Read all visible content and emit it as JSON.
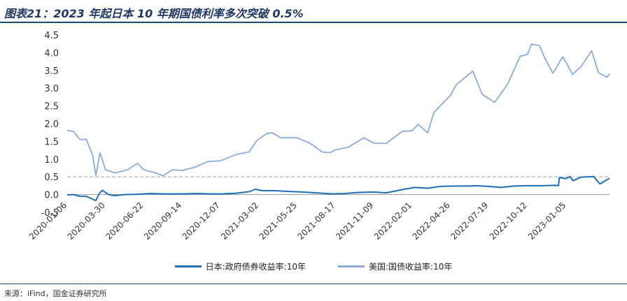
{
  "page": {
    "title": "图表21：2023 年起日本 10 年期国债利率多次突破 0.5%",
    "source": "来源：iFind，国金证券研究所"
  },
  "chart_data": {
    "type": "line",
    "title": "图表21：2023 年起日本 10 年期国债利率多次突破 0.5%",
    "xlabel": "",
    "ylabel": "",
    "ylim": [
      -0.5,
      4.5
    ],
    "yticks": [
      "-0.5",
      "0.0",
      "0.5",
      "1.0",
      "1.5",
      "2.0",
      "2.5",
      "3.0",
      "3.5",
      "4.0",
      "4.5"
    ],
    "xticks": [
      "2020-01-06",
      "2020-03-30",
      "2020-06-22",
      "2020-09-14",
      "2020-12-07",
      "2021-03-02",
      "2021-05-25",
      "2021-08-17",
      "2021-11-09",
      "2022-02-01",
      "2022-04-26",
      "2022-07-19",
      "2022-10-12",
      "2023-01-05"
    ],
    "xrange": [
      "2020-01-06",
      "2023-04-10"
    ],
    "reference_line": {
      "y": 0.5,
      "style": "dashed",
      "color": "#a6a6a6"
    },
    "grid": false,
    "legend_position": "bottom",
    "series": [
      {
        "name": "日本:政府债券收益率:10年",
        "color": "#1f6fb5",
        "points": [
          [
            "2020-01-06",
            -0.01
          ],
          [
            "2020-01-20",
            0.0
          ],
          [
            "2020-02-03",
            -0.05
          ],
          [
            "2020-02-17",
            -0.05
          ],
          [
            "2020-03-02",
            -0.13
          ],
          [
            "2020-03-09",
            -0.17
          ],
          [
            "2020-03-16",
            0.02
          ],
          [
            "2020-03-23",
            0.12
          ],
          [
            "2020-04-06",
            0.0
          ],
          [
            "2020-04-20",
            -0.03
          ],
          [
            "2020-05-11",
            0.0
          ],
          [
            "2020-06-08",
            0.01
          ],
          [
            "2020-07-06",
            0.03
          ],
          [
            "2020-08-03",
            0.02
          ],
          [
            "2020-09-14",
            0.02
          ],
          [
            "2020-10-19",
            0.03
          ],
          [
            "2020-11-16",
            0.02
          ],
          [
            "2020-12-14",
            0.02
          ],
          [
            "2021-01-11",
            0.04
          ],
          [
            "2021-02-08",
            0.08
          ],
          [
            "2021-02-22",
            0.15
          ],
          [
            "2021-03-08",
            0.11
          ],
          [
            "2021-04-05",
            0.11
          ],
          [
            "2021-05-03",
            0.09
          ],
          [
            "2021-06-07",
            0.07
          ],
          [
            "2021-07-05",
            0.05
          ],
          [
            "2021-08-09",
            0.02
          ],
          [
            "2021-09-06",
            0.03
          ],
          [
            "2021-10-04",
            0.06
          ],
          [
            "2021-11-08",
            0.07
          ],
          [
            "2021-12-06",
            0.05
          ],
          [
            "2022-01-10",
            0.14
          ],
          [
            "2022-02-07",
            0.2
          ],
          [
            "2022-03-07",
            0.18
          ],
          [
            "2022-04-04",
            0.23
          ],
          [
            "2022-05-09",
            0.24
          ],
          [
            "2022-06-06",
            0.24
          ],
          [
            "2022-06-20",
            0.25
          ],
          [
            "2022-07-18",
            0.23
          ],
          [
            "2022-08-15",
            0.2
          ],
          [
            "2022-09-12",
            0.24
          ],
          [
            "2022-10-10",
            0.25
          ],
          [
            "2022-11-14",
            0.25
          ],
          [
            "2022-12-12",
            0.26
          ],
          [
            "2022-12-19",
            0.25
          ],
          [
            "2022-12-21",
            0.48
          ],
          [
            "2023-01-05",
            0.45
          ],
          [
            "2023-01-13",
            0.51
          ],
          [
            "2023-01-20",
            0.39
          ],
          [
            "2023-02-06",
            0.49
          ],
          [
            "2023-03-06",
            0.51
          ],
          [
            "2023-03-20",
            0.3
          ],
          [
            "2023-04-10",
            0.46
          ]
        ]
      },
      {
        "name": "美国:国债收益率:10年",
        "color": "#8eaadb",
        "points": [
          [
            "2020-01-06",
            1.81
          ],
          [
            "2020-01-20",
            1.78
          ],
          [
            "2020-02-03",
            1.55
          ],
          [
            "2020-02-17",
            1.56
          ],
          [
            "2020-03-02",
            1.1
          ],
          [
            "2020-03-09",
            0.54
          ],
          [
            "2020-03-18",
            1.18
          ],
          [
            "2020-03-30",
            0.7
          ],
          [
            "2020-04-20",
            0.61
          ],
          [
            "2020-05-18",
            0.7
          ],
          [
            "2020-06-08",
            0.88
          ],
          [
            "2020-06-22",
            0.7
          ],
          [
            "2020-07-20",
            0.6
          ],
          [
            "2020-08-03",
            0.53
          ],
          [
            "2020-08-24",
            0.7
          ],
          [
            "2020-09-14",
            0.68
          ],
          [
            "2020-10-12",
            0.77
          ],
          [
            "2020-11-09",
            0.93
          ],
          [
            "2020-12-07",
            0.95
          ],
          [
            "2021-01-11",
            1.13
          ],
          [
            "2021-02-08",
            1.2
          ],
          [
            "2021-02-25",
            1.52
          ],
          [
            "2021-03-19",
            1.72
          ],
          [
            "2021-03-31",
            1.74
          ],
          [
            "2021-04-19",
            1.6
          ],
          [
            "2021-05-25",
            1.6
          ],
          [
            "2021-06-21",
            1.45
          ],
          [
            "2021-07-19",
            1.2
          ],
          [
            "2021-08-04",
            1.18
          ],
          [
            "2021-08-17",
            1.26
          ],
          [
            "2021-09-13",
            1.33
          ],
          [
            "2021-10-18",
            1.6
          ],
          [
            "2021-11-09",
            1.45
          ],
          [
            "2021-12-06",
            1.44
          ],
          [
            "2022-01-10",
            1.78
          ],
          [
            "2022-02-01",
            1.8
          ],
          [
            "2022-02-14",
            1.98
          ],
          [
            "2022-03-07",
            1.74
          ],
          [
            "2022-03-21",
            2.32
          ],
          [
            "2022-04-26",
            2.8
          ],
          [
            "2022-05-09",
            3.1
          ],
          [
            "2022-06-14",
            3.48
          ],
          [
            "2022-07-05",
            2.82
          ],
          [
            "2022-08-01",
            2.6
          ],
          [
            "2022-08-29",
            3.1
          ],
          [
            "2022-09-26",
            3.9
          ],
          [
            "2022-10-12",
            3.95
          ],
          [
            "2022-10-21",
            4.24
          ],
          [
            "2022-11-07",
            4.2
          ],
          [
            "2022-11-21",
            3.8
          ],
          [
            "2022-12-07",
            3.42
          ],
          [
            "2022-12-28",
            3.88
          ],
          [
            "2023-01-05",
            3.72
          ],
          [
            "2023-01-19",
            3.39
          ],
          [
            "2023-02-06",
            3.6
          ],
          [
            "2023-03-02",
            4.05
          ],
          [
            "2023-03-17",
            3.43
          ],
          [
            "2023-04-05",
            3.31
          ],
          [
            "2023-04-10",
            3.41
          ]
        ]
      }
    ]
  }
}
